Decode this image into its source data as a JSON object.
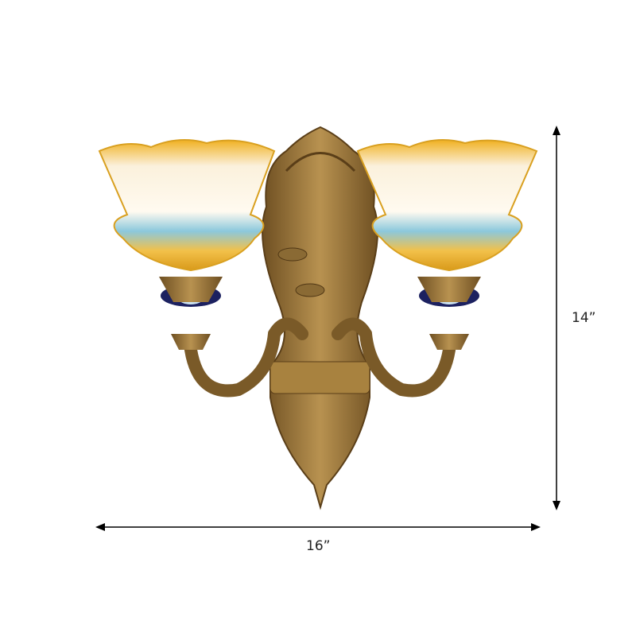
{
  "product": {
    "colors": {
      "brass": "#a07a3a",
      "glass_amber": "#e8b830",
      "glass_blue": "#7fc3d8",
      "glass_white": "#fbf3e0"
    }
  },
  "dimensions": {
    "height_label": "14”",
    "width_label": "16”"
  }
}
